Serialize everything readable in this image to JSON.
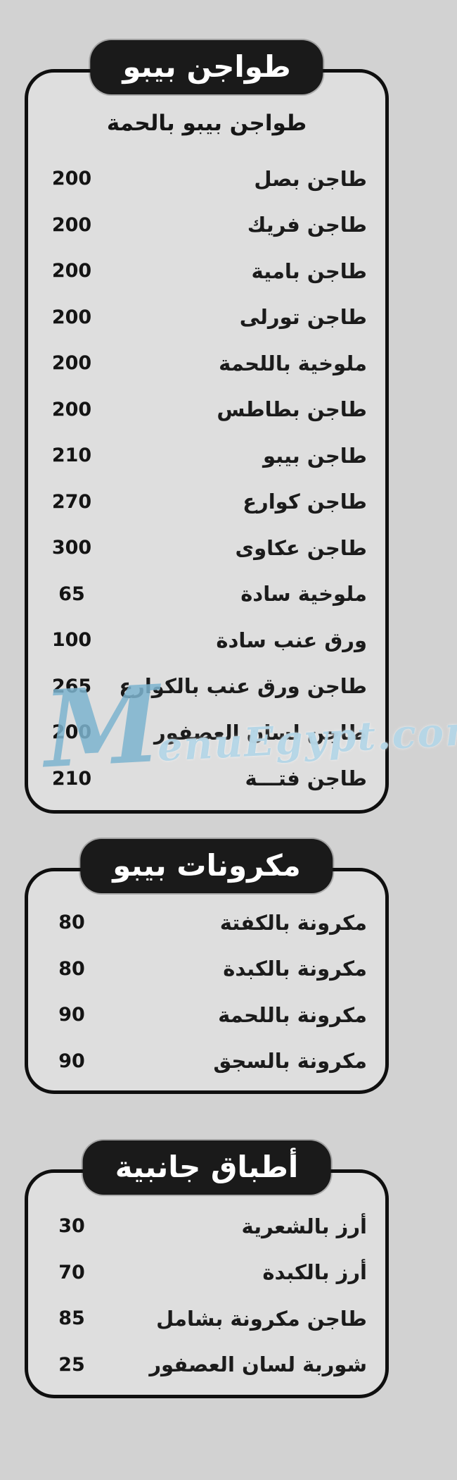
{
  "page": {
    "background": "#d2d2d2",
    "box_fill": "#dedede",
    "border_color": "#0f0f0f",
    "pill_bg": "#1a1a1a",
    "pill_text_color": "#ffffff",
    "text_color": "#1b1b1b"
  },
  "watermark": {
    "m": "M",
    "rest": "enuEgypt.com",
    "color": "#9cc6da"
  },
  "sections": [
    {
      "title": "طواجن بيبو",
      "subtitle": "طواجن بيبو بالحمة",
      "items": [
        {
          "name": "طاجن بصل",
          "price": "200"
        },
        {
          "name": "طاجن فريك",
          "price": "200"
        },
        {
          "name": "طاجن بامية",
          "price": "200"
        },
        {
          "name": "طاجن تورلى",
          "price": "200"
        },
        {
          "name": "ملوخية باللحمة",
          "price": "200"
        },
        {
          "name": "طاجن بطاطس",
          "price": "200"
        },
        {
          "name": "طاجن بيبو",
          "price": "210"
        },
        {
          "name": "طاجن كوارع",
          "price": "270"
        },
        {
          "name": "طاجن عكاوى",
          "price": "300"
        },
        {
          "name": "ملوخية سادة",
          "price": "65"
        },
        {
          "name": "ورق عنب سادة",
          "price": "100"
        },
        {
          "name": "طاجن ورق عنب بالكوارع",
          "price": "265"
        },
        {
          "name": "طاجن لسان العصفور",
          "price": "200"
        },
        {
          "name": "طاجن فتـــة",
          "price": "210"
        }
      ]
    },
    {
      "title": "مكرونات بيبو",
      "subtitle": "",
      "items": [
        {
          "name": "مكرونة بالكفتة",
          "price": "80"
        },
        {
          "name": "مكرونة بالكبدة",
          "price": "80"
        },
        {
          "name": "مكرونة باللحمة",
          "price": "90"
        },
        {
          "name": "مكرونة بالسجق",
          "price": "90"
        }
      ]
    },
    {
      "title": "أطباق جانبية",
      "subtitle": "",
      "items": [
        {
          "name": "أرز بالشعرية",
          "price": "30"
        },
        {
          "name": "أرز بالكبدة",
          "price": "70"
        },
        {
          "name": "طاجن مكرونة بشامل",
          "price": "85"
        },
        {
          "name": "شوربة لسان العصفور",
          "price": "25"
        }
      ]
    }
  ]
}
